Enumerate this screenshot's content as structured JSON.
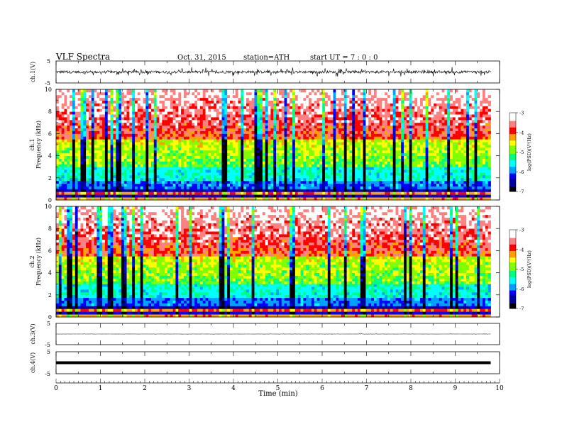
{
  "header": {
    "title": "VLF  Spectra",
    "date": "Oct. 31, 2015",
    "station": "station=ATH",
    "start": "start  UT  =   7 : 0  : 0"
  },
  "chart_data": {
    "type": "heatmap",
    "xlabel": "Time  (min)",
    "xlim": [
      0,
      10
    ],
    "x_ticks": [
      "0",
      "1",
      "2",
      "3",
      "4",
      "5",
      "6",
      "7",
      "8",
      "9",
      "10"
    ],
    "panels": [
      {
        "kind": "trace",
        "ylabel": "ch.1(V)",
        "ylim": [
          -5,
          5
        ],
        "y_ticks": [
          "5",
          "-5"
        ],
        "baseline": 0,
        "amplitude": 1.8,
        "noise": 0.6,
        "color": "#000000"
      },
      {
        "kind": "spectrogram",
        "channel": "ch.1",
        "ylabel": "Frequency  (kHz)",
        "ylim": [
          0,
          10
        ],
        "y_ticks": [
          "0",
          "2",
          "4",
          "6",
          "8",
          "10"
        ],
        "colorbar": {
          "label": "log(PSD)(V²/Hz)",
          "range": [
            -7,
            -3
          ],
          "ticks": [
            "-3",
            "-4",
            "-5",
            "-6",
            "-7"
          ]
        }
      },
      {
        "kind": "spectrogram",
        "channel": "ch.2",
        "ylabel": "Frequency  (kHz)",
        "ylim": [
          0,
          10
        ],
        "y_ticks": [
          "0",
          "2",
          "4",
          "6",
          "8",
          "10"
        ],
        "colorbar": {
          "label": "log(PSD)(V²/Hz)",
          "range": [
            -7,
            -3
          ],
          "ticks": [
            "-3",
            "-4",
            "-5",
            "-6",
            "-7"
          ]
        }
      },
      {
        "kind": "trace",
        "ylabel": "ch.3(V)",
        "ylim": [
          -5,
          5
        ],
        "y_ticks": [
          "5",
          "-5"
        ],
        "baseline": 0,
        "amplitude": 0.15,
        "noise": 0.05,
        "color": "#333333"
      },
      {
        "kind": "trace",
        "ylabel": "ch.4(V)",
        "ylim": [
          -5,
          5
        ],
        "y_ticks": [
          "5",
          "-5"
        ],
        "baseline": 0,
        "amplitude": 0,
        "noise": 0,
        "thick": true,
        "color": "#000000"
      }
    ],
    "data_end_min": 9.8,
    "colormap": [
      "#000000",
      "#0000a0",
      "#0000ff",
      "#00a0ff",
      "#00ffff",
      "#00ff80",
      "#80ff00",
      "#ffff00",
      "#ffa000",
      "#ff0000",
      "#ff8080",
      "#ffffff"
    ]
  }
}
